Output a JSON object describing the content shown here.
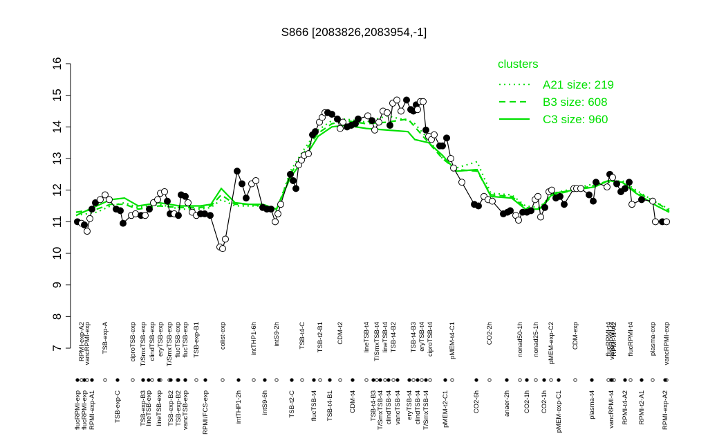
{
  "chart_data": {
    "type": "line",
    "title": "S866 [2083826,2083954,-1]",
    "ylim": [
      7,
      16
    ],
    "yticks": [
      7,
      8,
      9,
      10,
      11,
      12,
      13,
      14,
      15,
      16
    ],
    "xlim": [
      100,
      975
    ],
    "legend_title": "clusters",
    "legend_position": "top-right",
    "points": {
      "color": "#000000",
      "x": [
        112,
        118,
        122,
        126,
        130,
        133,
        138,
        145,
        152,
        158,
        168,
        174,
        178,
        190,
        196,
        204,
        210,
        216,
        222,
        228,
        232,
        238,
        242,
        246,
        252,
        258,
        262,
        268,
        272,
        278,
        284,
        290,
        296,
        304,
        318,
        322,
        326,
        343,
        350,
        356,
        364,
        370,
        380,
        386,
        392,
        398,
        402,
        406,
        420,
        424,
        428,
        432,
        436,
        440,
        446,
        452,
        456,
        462,
        466,
        470,
        474,
        480,
        488,
        492,
        496,
        502,
        508,
        514,
        518,
        532,
        538,
        542,
        548,
        554,
        560,
        564,
        568,
        574,
        580,
        588,
        594,
        598,
        602,
        604,
        608,
        612,
        616,
        620,
        624,
        628,
        636,
        640,
        646,
        652,
        656,
        668,
        686,
        692,
        700,
        706,
        712,
        728,
        734,
        738,
        746,
        750,
        756,
        762,
        768,
        774,
        778,
        782,
        788,
        794,
        798,
        804,
        810,
        816,
        830,
        834,
        840,
        852,
        858,
        862,
        878,
        882,
        886,
        892,
        898,
        904,
        910,
        914,
        928,
        944,
        948,
        958,
        964
      ],
      "values": [
        11.0,
        10.95,
        10.9,
        10.7,
        11.1,
        11.4,
        11.6,
        11.7,
        11.85,
        11.7,
        11.4,
        11.35,
        10.95,
        11.2,
        11.25,
        11.2,
        11.2,
        11.4,
        11.6,
        11.7,
        11.9,
        11.95,
        11.65,
        11.25,
        11.25,
        11.2,
        11.85,
        11.8,
        11.6,
        11.3,
        11.2,
        11.25,
        11.25,
        11.2,
        10.2,
        10.15,
        10.45,
        12.6,
        12.2,
        11.75,
        12.2,
        12.3,
        11.45,
        11.4,
        11.4,
        11.0,
        11.25,
        11.55,
        12.5,
        12.3,
        12.05,
        12.8,
        12.95,
        13.1,
        13.15,
        13.75,
        13.85,
        14.15,
        14.3,
        14.45,
        14.45,
        14.4,
        14.25,
        13.95,
        14.15,
        14.0,
        14.05,
        14.1,
        14.25,
        14.35,
        14.2,
        13.9,
        14.15,
        14.5,
        14.45,
        14.05,
        14.75,
        14.85,
        14.5,
        14.85,
        14.55,
        14.5,
        14.7,
        14.55,
        14.8,
        14.8,
        13.9,
        13.7,
        13.6,
        13.75,
        13.4,
        13.4,
        13.65,
        13.0,
        12.7,
        12.25,
        11.55,
        11.5,
        11.8,
        11.7,
        11.65,
        11.25,
        11.3,
        11.35,
        11.2,
        11.05,
        11.3,
        11.3,
        11.35,
        11.7,
        11.8,
        11.15,
        11.45,
        11.95,
        12.0,
        11.75,
        11.8,
        11.55,
        12.05,
        12.05,
        12.05,
        11.85,
        11.65,
        12.25,
        12.1,
        12.5,
        12.4,
        12.2,
        11.95,
        12.05,
        12.25,
        11.55,
        11.7,
        11.65,
        11.0,
        11.0,
        11.0
      ],
      "filled": [
        true,
        false,
        true,
        false,
        false,
        true,
        true,
        false,
        false,
        false,
        true,
        true,
        true,
        false,
        false,
        true,
        false,
        true,
        false,
        false,
        false,
        false,
        true,
        true,
        false,
        true,
        true,
        true,
        false,
        false,
        false,
        true,
        true,
        true,
        false,
        false,
        false,
        true,
        true,
        true,
        false,
        false,
        true,
        true,
        true,
        false,
        false,
        false,
        true,
        true,
        true,
        false,
        false,
        false,
        false,
        true,
        true,
        false,
        false,
        false,
        true,
        true,
        true,
        false,
        false,
        true,
        true,
        true,
        true,
        false,
        true,
        false,
        false,
        false,
        false,
        true,
        false,
        false,
        false,
        true,
        true,
        true,
        true,
        false,
        false,
        false,
        true,
        false,
        false,
        false,
        true,
        true,
        true,
        false,
        false,
        false,
        true,
        true,
        false,
        false,
        false,
        true,
        true,
        true,
        false,
        false,
        true,
        true,
        true,
        false,
        false,
        false,
        true,
        false,
        false,
        true,
        true,
        true,
        false,
        false,
        false,
        true,
        true,
        true,
        false,
        true,
        false,
        true,
        true,
        true,
        true,
        false,
        true,
        false,
        false,
        true,
        false
      ]
    },
    "series": [
      {
        "name": "A21 size: 219",
        "color": "#00e000",
        "dash": "dotted",
        "x": [
          110,
          140,
          160,
          180,
          200,
          230,
          260,
          290,
          305,
          320,
          340,
          360,
          380,
          400,
          420,
          440,
          460,
          480,
          500,
          530,
          560,
          590,
          600,
          620,
          640,
          660,
          690,
          710,
          740,
          760,
          780,
          800,
          830,
          860,
          880,
          900,
          920,
          950,
          968
        ],
        "values": [
          11.2,
          11.3,
          11.5,
          11.6,
          11.45,
          11.55,
          11.4,
          11.4,
          11.45,
          11.7,
          11.5,
          11.5,
          11.5,
          11.35,
          12.6,
          13.3,
          13.9,
          14.2,
          14.25,
          14.15,
          14.35,
          14.2,
          14.1,
          13.6,
          13.0,
          12.7,
          12.9,
          11.9,
          11.85,
          11.5,
          11.45,
          11.9,
          12.05,
          12.2,
          12.25,
          12.3,
          12.0,
          11.6,
          11.4
        ]
      },
      {
        "name": "B3 size: 608",
        "color": "#00e000",
        "dash": "dashed",
        "x": [
          110,
          140,
          160,
          180,
          200,
          230,
          260,
          290,
          305,
          320,
          340,
          360,
          380,
          400,
          420,
          440,
          460,
          480,
          500,
          530,
          560,
          590,
          600,
          620,
          640,
          660,
          690,
          710,
          740,
          760,
          780,
          800,
          830,
          860,
          880,
          900,
          920,
          950,
          968
        ],
        "values": [
          11.3,
          11.4,
          11.55,
          11.55,
          11.4,
          11.5,
          11.45,
          11.45,
          11.5,
          11.85,
          11.55,
          11.55,
          11.5,
          11.4,
          12.5,
          13.2,
          13.8,
          14.1,
          14.2,
          14.1,
          14.15,
          14.25,
          14.0,
          13.5,
          13.0,
          12.65,
          12.6,
          11.85,
          11.8,
          11.45,
          11.4,
          11.85,
          12.0,
          12.15,
          12.3,
          12.25,
          11.95,
          11.6,
          11.35
        ]
      },
      {
        "name": "C3 size: 960",
        "color": "#00e000",
        "dash": "solid",
        "x": [
          110,
          140,
          160,
          180,
          200,
          230,
          260,
          290,
          305,
          320,
          340,
          360,
          380,
          400,
          420,
          440,
          460,
          480,
          500,
          530,
          560,
          590,
          600,
          620,
          640,
          660,
          690,
          710,
          740,
          760,
          780,
          800,
          830,
          860,
          880,
          900,
          920,
          950,
          968
        ],
        "values": [
          11.2,
          11.5,
          11.7,
          11.75,
          11.5,
          11.6,
          11.5,
          11.5,
          11.55,
          12.05,
          11.6,
          11.55,
          11.55,
          11.4,
          12.4,
          13.0,
          13.7,
          14.0,
          14.05,
          13.95,
          13.9,
          13.85,
          13.6,
          13.5,
          13.1,
          12.6,
          12.65,
          11.8,
          11.75,
          11.4,
          11.4,
          11.9,
          12.0,
          12.1,
          12.3,
          12.25,
          11.9,
          11.5,
          11.3
        ]
      }
    ],
    "labels_top": [
      {
        "x": 118,
        "label": "RPMI-exp-A2"
      },
      {
        "x": 126,
        "label": "vancRPMI-exp"
      },
      {
        "x": 152,
        "label": "TSB-exp-A"
      },
      {
        "x": 192,
        "label": "ciproTSB-exp"
      },
      {
        "x": 207,
        "label": "T/SmxTSB-exp"
      },
      {
        "x": 220,
        "label": "clindTSB-exp"
      },
      {
        "x": 232,
        "label": "eryTSB-exp"
      },
      {
        "x": 245,
        "label": "T/SmxTSB-exp"
      },
      {
        "x": 257,
        "label": "flucTSB-exp"
      },
      {
        "x": 268,
        "label": "flucTSB-exp"
      },
      {
        "x": 284,
        "label": "TSB-exp-B1"
      },
      {
        "x": 322,
        "label": "colist-exp"
      },
      {
        "x": 367,
        "label": "intTHP1-6h"
      },
      {
        "x": 400,
        "label": "intS9-2h"
      },
      {
        "x": 437,
        "label": "TSB-t4-C"
      },
      {
        "x": 463,
        "label": "TSB-t2-B1"
      },
      {
        "x": 492,
        "label": "CDM-t2"
      },
      {
        "x": 530,
        "label": "lineTSB-t4"
      },
      {
        "x": 545,
        "label": "T/SmxTSB-t4"
      },
      {
        "x": 557,
        "label": "lineTSB-t4"
      },
      {
        "x": 569,
        "label": "TSB-t4-B2"
      },
      {
        "x": 598,
        "label": "TSB-t4-B3"
      },
      {
        "x": 610,
        "label": "eryTSB-t4"
      },
      {
        "x": 622,
        "label": "ciproTSB-t4"
      },
      {
        "x": 654,
        "label": "pMEM-t4-C1"
      },
      {
        "x": 708,
        "label": "CO2-2h"
      },
      {
        "x": 752,
        "label": "nonad50-1h"
      },
      {
        "x": 775,
        "label": "nonad25-1h"
      },
      {
        "x": 797,
        "label": "pMEM-exp-C2"
      },
      {
        "x": 832,
        "label": "CDM-exp"
      },
      {
        "x": 880,
        "label": "flucRPMI-t4"
      },
      {
        "x": 888,
        "label": "RPMI-t4-A2"
      },
      {
        "x": 885,
        "label": "vancRPMI-t4"
      },
      {
        "x": 912,
        "label": "flucRPMI-t4"
      },
      {
        "x": 944,
        "label": "plasma-exp"
      },
      {
        "x": 964,
        "label": "vancRPMI-exp"
      }
    ],
    "labels_bottom": [
      {
        "x": 112,
        "label": "flucRPMI-exp"
      },
      {
        "x": 122,
        "label": "flucRPMI-exp"
      },
      {
        "x": 133,
        "label": "RPMI-exp-A1"
      },
      {
        "x": 170,
        "label": "TSB-exp-C"
      },
      {
        "x": 207,
        "label": "TSB-exp-B3"
      },
      {
        "x": 215,
        "label": "lineTSB-exp"
      },
      {
        "x": 230,
        "label": "lineTSB-exp"
      },
      {
        "x": 247,
        "label": "TSB-exp-B2"
      },
      {
        "x": 258,
        "label": "TSB-exp-B2"
      },
      {
        "x": 268,
        "label": "vancTSB-exp"
      },
      {
        "x": 297,
        "label": "RPMI/FCS-exp"
      },
      {
        "x": 345,
        "label": "intTHP1-2h"
      },
      {
        "x": 383,
        "label": "intS9-6h"
      },
      {
        "x": 422,
        "label": "TSB-t2-C"
      },
      {
        "x": 454,
        "label": "flucTSB-t4"
      },
      {
        "x": 477,
        "label": "TSB-t4-B1"
      },
      {
        "x": 510,
        "label": "CDM-t4"
      },
      {
        "x": 540,
        "label": "TSB-t4-B3"
      },
      {
        "x": 550,
        "label": "T/SmxTSB-t4"
      },
      {
        "x": 562,
        "label": "clindTSB-t4"
      },
      {
        "x": 575,
        "label": "vancTSB-t4"
      },
      {
        "x": 592,
        "label": "eryTSB-t4"
      },
      {
        "x": 604,
        "label": "clindTSB-t4"
      },
      {
        "x": 616,
        "label": "T/SmxTSB-t4"
      },
      {
        "x": 644,
        "label": "pMEM-t2-C1"
      },
      {
        "x": 689,
        "label": "CO2-6h"
      },
      {
        "x": 733,
        "label": "anaer-2h"
      },
      {
        "x": 762,
        "label": "CO2-1h"
      },
      {
        "x": 787,
        "label": "CO2-1h"
      },
      {
        "x": 808,
        "label": "pMEM-exp-C1"
      },
      {
        "x": 856,
        "label": "plasma-t4"
      },
      {
        "x": 884,
        "label": "vancRPMI-t4"
      },
      {
        "x": 904,
        "label": "RPMI-t4-A2"
      },
      {
        "x": 928,
        "label": "RPMI-t2-A1"
      },
      {
        "x": 962,
        "label": "RPMI-exp-A2"
      }
    ]
  }
}
